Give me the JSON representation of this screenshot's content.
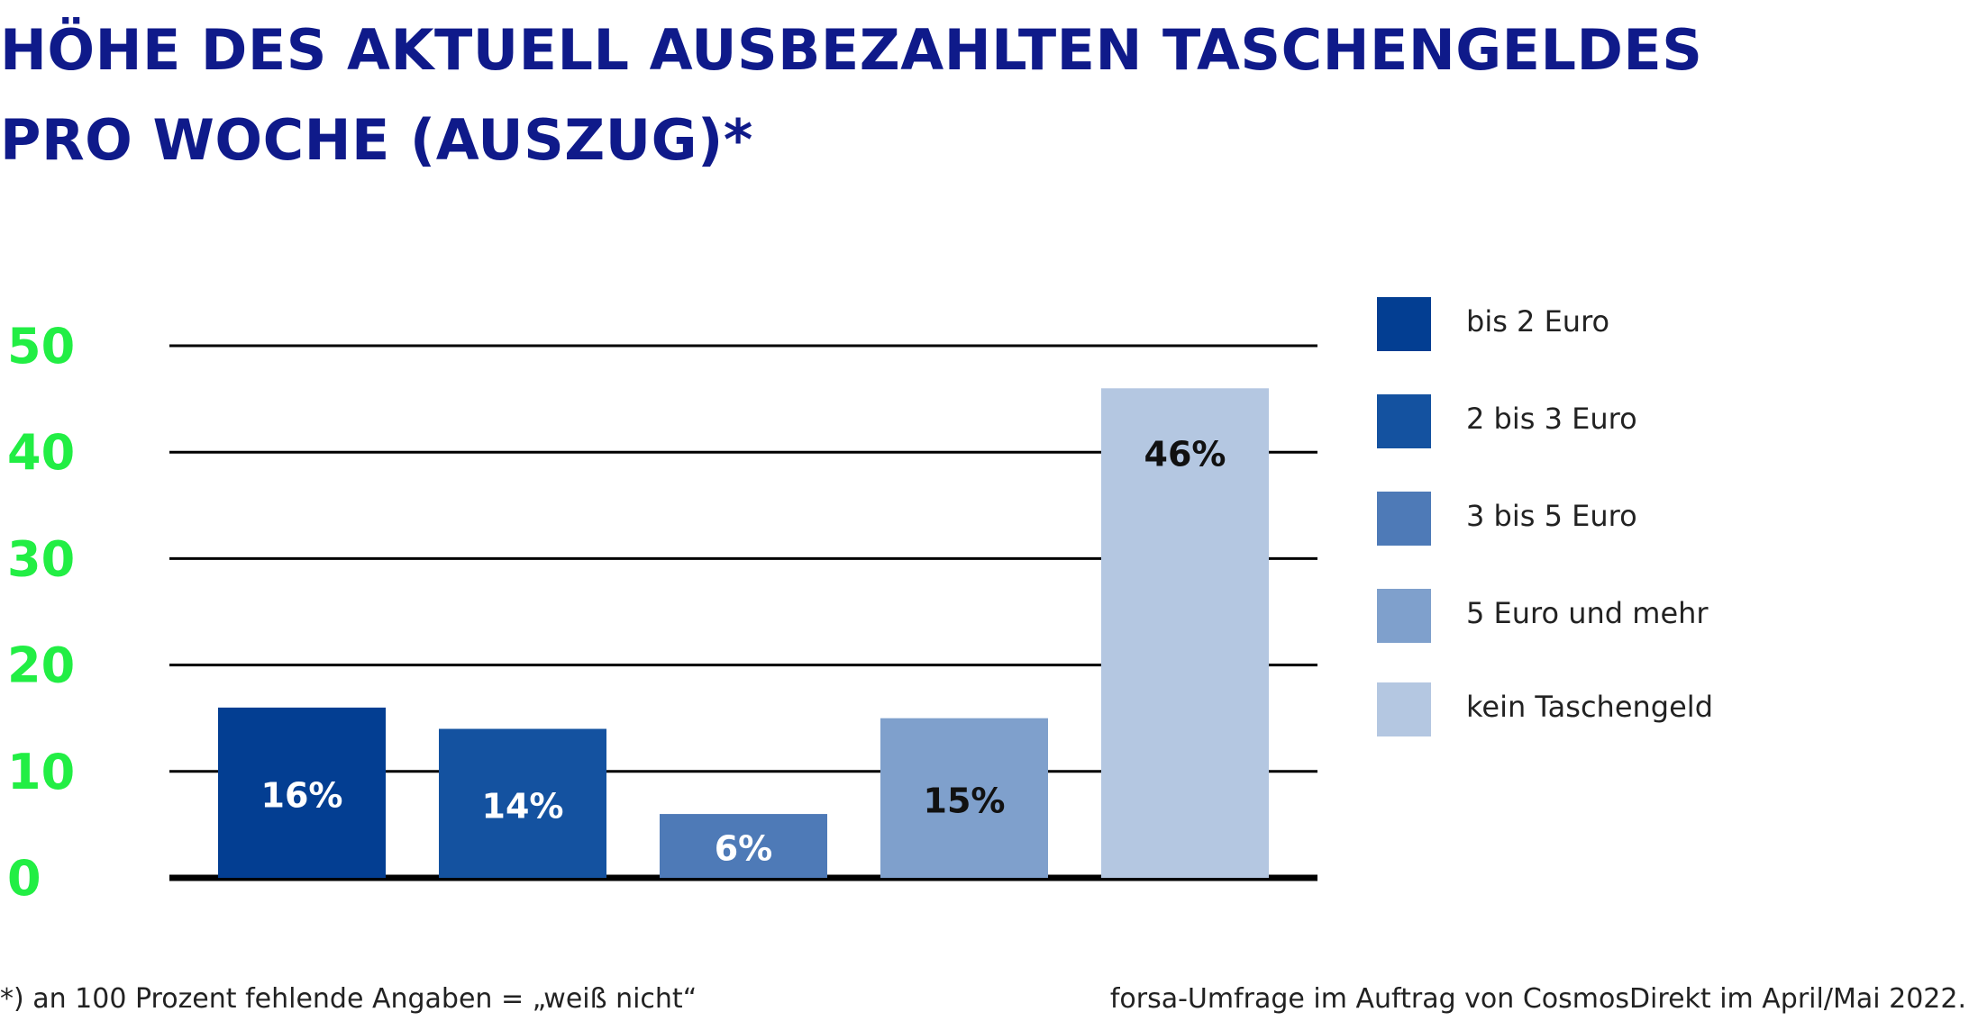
{
  "title_lines": [
    "HÖHE DES AKTUELL AUSBEZAHLTEN TASCHENGELDES",
    "PRO WOCHE (AUSZUG)*"
  ],
  "chart_data": {
    "type": "bar",
    "categories": [
      "bis 2 Euro",
      "2 bis 3 Euro",
      "3 bis 5 Euro",
      "5 Euro und mehr",
      "kein Taschengeld"
    ],
    "values": [
      16,
      14,
      6,
      15,
      46
    ],
    "value_labels": [
      "16%",
      "14%",
      "6%",
      "15%",
      "46%"
    ],
    "bar_colors": [
      "#033e92",
      "#1452a0",
      "#4e7ab7",
      "#7fa0cc",
      "#b4c7e1"
    ],
    "value_label_colors": [
      "#ffffff",
      "#ffffff",
      "#ffffff",
      "#111111",
      "#111111"
    ],
    "yticks": [
      "0",
      "10",
      "20",
      "30",
      "40",
      "50"
    ],
    "ylim": [
      0,
      50
    ],
    "tick_color": "#22ee44",
    "grid": true,
    "legend": "right",
    "xlabel": "",
    "ylabel": ""
  },
  "footnote": "*) an 100 Prozent fehlende Angaben = „weiß nicht“",
  "source": "forsa-Umfrage im Auftrag von CosmosDirekt im April/Mai 2022."
}
